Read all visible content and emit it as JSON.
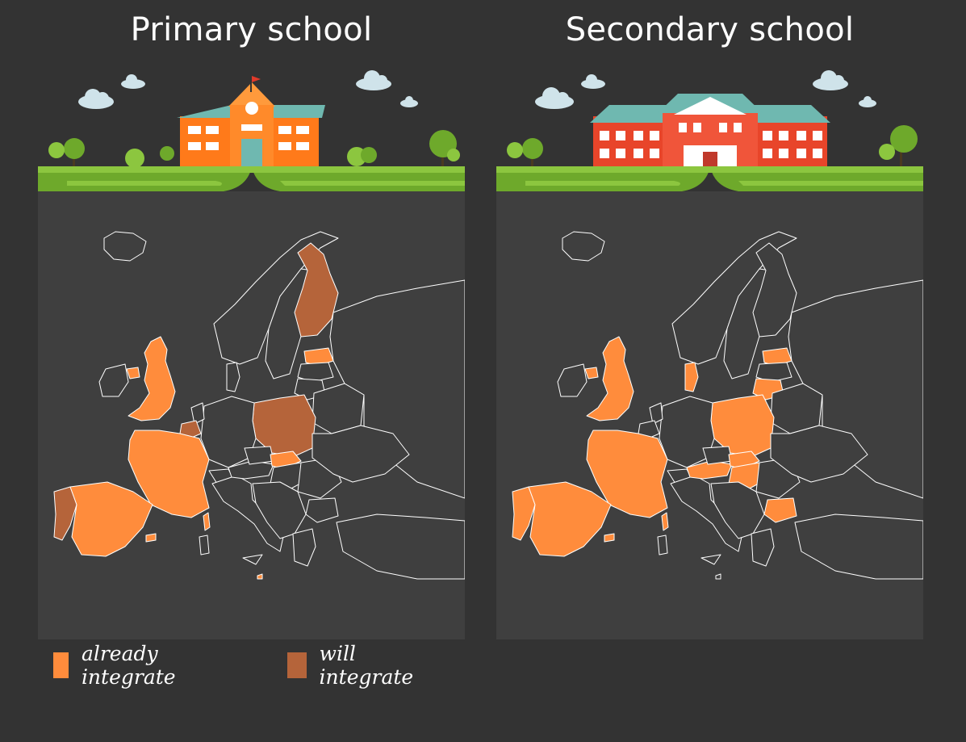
{
  "panels": [
    {
      "title": "Primary school",
      "building": "primary-school-building",
      "countries": {
        "united-kingdom": "already",
        "northern-ireland": "already",
        "france": "already",
        "spain": "already",
        "portugal": "will",
        "belgium": "will",
        "finland": "will",
        "poland": "will",
        "estonia": "already",
        "slovakia": "already",
        "malta": "already",
        "balearic-islands": "already",
        "corsica": "already"
      }
    },
    {
      "title": "Secondary school",
      "building": "secondary-school-building",
      "countries": {
        "united-kingdom": "already",
        "northern-ireland": "already",
        "france": "already",
        "spain": "already",
        "portugal": "already",
        "denmark": "already",
        "estonia": "already",
        "lithuania": "already",
        "poland": "already",
        "slovakia": "already",
        "austria": "already",
        "hungary": "already",
        "bulgaria": "already",
        "corsica": "already",
        "balearic-islands": "already"
      }
    }
  ],
  "legend": [
    {
      "label": "already integrate",
      "key": "already"
    },
    {
      "label": "will integrate",
      "key": "will"
    }
  ],
  "colors": {
    "already": "#ff8c3c",
    "will": "#b5643a",
    "background": "#333333",
    "map_background": "#3f3f3f",
    "border": "#ffffff",
    "grass": "#7fb52a"
  }
}
